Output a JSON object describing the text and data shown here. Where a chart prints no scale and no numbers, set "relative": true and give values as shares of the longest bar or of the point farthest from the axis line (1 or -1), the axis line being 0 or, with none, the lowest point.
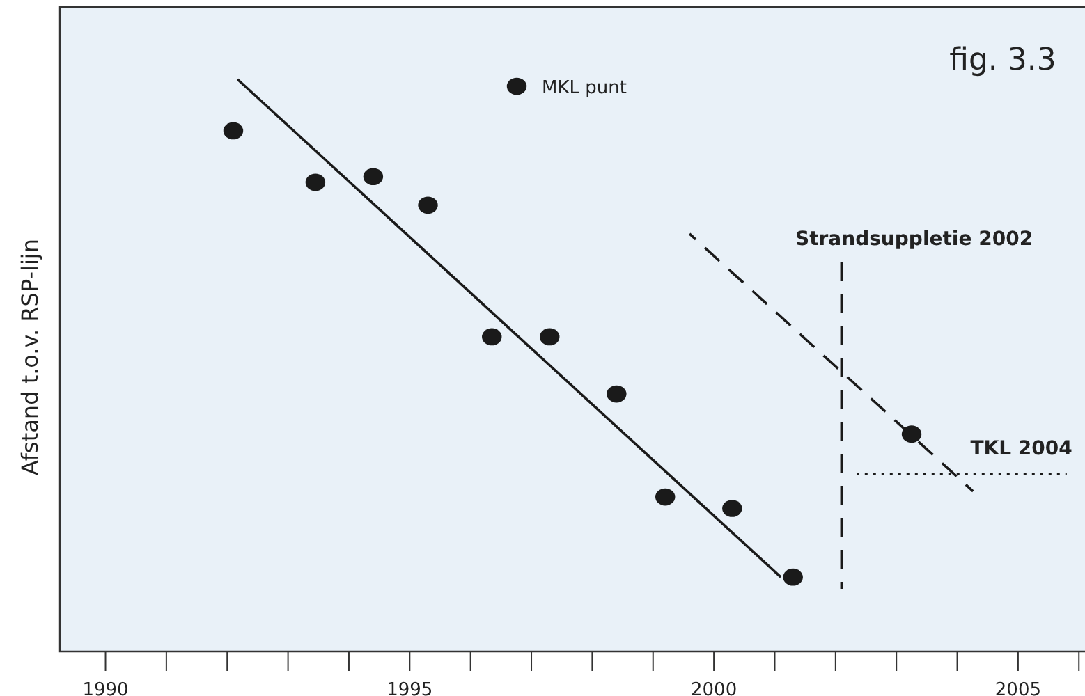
{
  "chart_data": {
    "type": "scatter",
    "title": "fig.  3.3",
    "ylabel": "Afstand t.o.v. RSP-lijn",
    "relative": true,
    "xlim": [
      1989.25,
      2006.1
    ],
    "xticks": [
      1990,
      {
        "value": 1991,
        "label": null
      },
      {
        "value": 1992,
        "label": null
      },
      {
        "value": 1993,
        "label": null
      },
      {
        "value": 1994,
        "label": null
      },
      1995,
      {
        "value": 1996,
        "label": null
      },
      {
        "value": 1997,
        "label": null
      },
      {
        "value": 1998,
        "label": null
      },
      {
        "value": 1999,
        "label": null
      },
      2000,
      {
        "value": 2001,
        "label": null
      },
      {
        "value": 2002,
        "label": null
      },
      {
        "value": 2003,
        "label": null
      },
      {
        "value": 2004,
        "label": null
      },
      2005,
      {
        "value": 2006,
        "label": null
      }
    ],
    "grid": false,
    "legend": "top",
    "series": [
      {
        "name": "MKL punt",
        "marker": "circle",
        "color": "#1a1a1a",
        "x": [
          1992.1,
          1993.45,
          1994.4,
          1995.3,
          1996.35,
          1997.3,
          1998.4,
          1999.2,
          2000.3,
          2001.3,
          2003.25
        ],
        "values": [
          0.91,
          0.82,
          0.83,
          0.78,
          0.55,
          0.55,
          0.45,
          0.27,
          0.25,
          0.13,
          0.38
        ]
      },
      {
        "type": "line",
        "color": "#1a1a1a",
        "line_style": "solid",
        "x": [
          1992.17,
          2001.1
        ],
        "values": [
          1,
          0.13
        ]
      },
      {
        "type": "line",
        "color": "#1a1a1a",
        "line_style": "dashed",
        "x": [
          1999.6,
          2004.26
        ],
        "values": [
          0.73,
          0.28
        ]
      },
      {
        "name": "TKL 2004",
        "type": "line",
        "color": "#1a1a1a",
        "line_style": "dotted",
        "x": [
          2002.35,
          2005.8
        ],
        "values": [
          0.31,
          0.31
        ]
      }
    ],
    "ref_lines": [
      {
        "axis": "x",
        "value": 2002.1,
        "label": "Strandsuppletie 2002",
        "color": "#1a1a1a",
        "line_style": "dashed"
      }
    ]
  }
}
